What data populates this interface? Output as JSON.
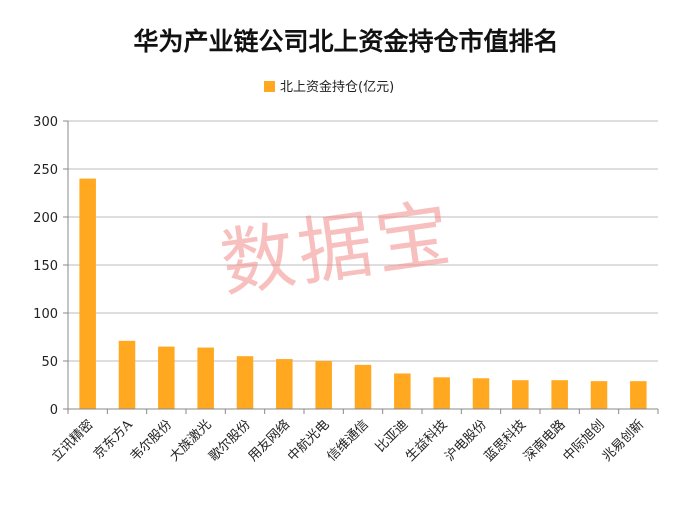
{
  "watermark": "数据宝",
  "colors": {
    "bar": "#FFA820",
    "grid": "#bdbdbd",
    "axis": "#888888",
    "watermark": "#f28a8a"
  },
  "chart_data": {
    "type": "bar",
    "title": "华为产业链公司北上资金持仓市值排名",
    "xlabel": "",
    "ylabel": "",
    "ylim": [
      0,
      300
    ],
    "yticks": [
      0,
      50,
      100,
      150,
      200,
      250,
      300
    ],
    "grid": true,
    "legend": "top-center",
    "categories": [
      "立讯精密",
      "京东方A",
      "韦尔股份",
      "大族激光",
      "歌尔股份",
      "用友网络",
      "中航光电",
      "信维通信",
      "比亚迪",
      "生益科技",
      "沪电股份",
      "蓝思科技",
      "深南电路",
      "中际旭创",
      "兆易创新"
    ],
    "series": [
      {
        "name": "北上资金持仓(亿元)",
        "values": [
          240,
          71,
          65,
          64,
          55,
          52,
          50,
          46,
          37,
          33,
          32,
          30,
          30,
          29,
          29
        ]
      }
    ]
  }
}
